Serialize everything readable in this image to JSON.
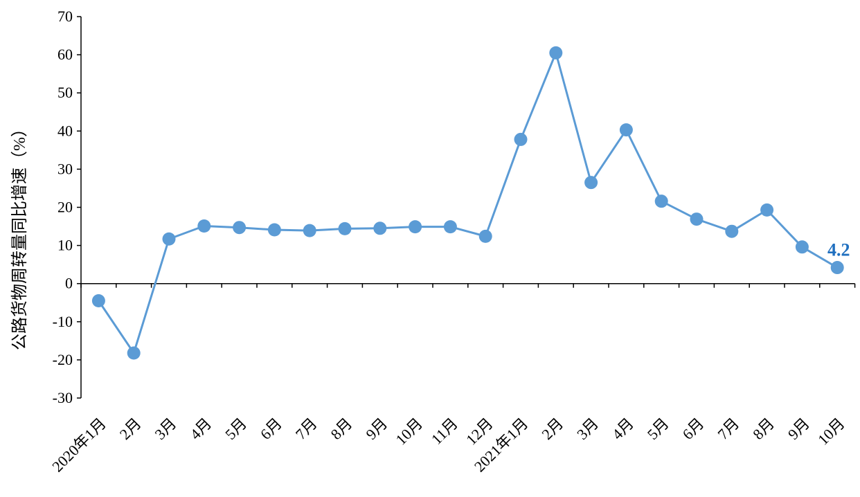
{
  "colors": {
    "series": "#5B9BD5",
    "axis": "#000000",
    "highlight": "#1F6FBF"
  },
  "chart_data": {
    "type": "line",
    "ylabel": "公路货物周转量同比增速（%）",
    "xlabel": "",
    "ylim": [
      -30,
      70
    ],
    "yticks": [
      -30,
      -20,
      -10,
      0,
      10,
      20,
      30,
      40,
      50,
      60,
      70
    ],
    "grid": false,
    "categories": [
      "2020年1月",
      "2月",
      "3月",
      "4月",
      "5月",
      "6月",
      "7月",
      "8月",
      "9月",
      "10月",
      "11月",
      "12月",
      "2021年1月",
      "2月",
      "3月",
      "4月",
      "5月",
      "6月",
      "7月",
      "8月",
      "9月",
      "10月"
    ],
    "series": [
      {
        "values": [
          -4.5,
          -18.2,
          11.7,
          15.1,
          14.7,
          14.1,
          13.9,
          14.4,
          14.5,
          14.9,
          14.9,
          12.4,
          37.8,
          60.5,
          26.5,
          40.3,
          21.6,
          16.9,
          13.7,
          19.3,
          9.6,
          4.2
        ]
      }
    ],
    "annotations": [
      {
        "index": 21,
        "text": "4.2"
      }
    ]
  }
}
